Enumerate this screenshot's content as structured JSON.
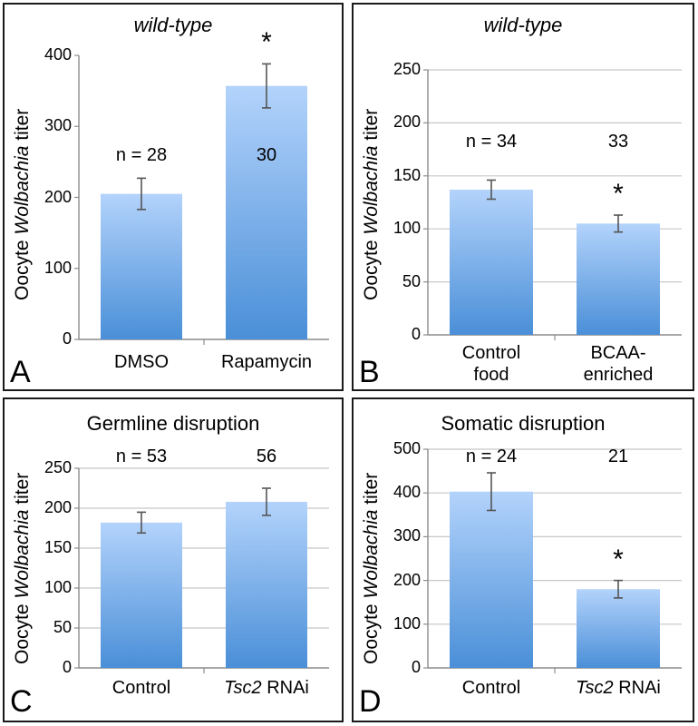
{
  "colors": {
    "bar_top": "#b3d3fb",
    "bar_bottom": "#4a8fd8",
    "grid": "#c8c8c8",
    "axis": "#8c8c8c",
    "errorbar": "#555555",
    "border": "#1a1a1a"
  },
  "chart_data": [
    {
      "panel": "A",
      "type": "bar",
      "title": "wild-type",
      "ylabel": {
        "before": "Oocyte ",
        "italic": "Wolbachia",
        "after": " titer"
      },
      "categories": [
        {
          "lines": [
            {
              "text": "DMSO",
              "italic": false
            }
          ]
        },
        {
          "lines": [
            {
              "text": "Rapamycin",
              "italic": false
            }
          ]
        }
      ],
      "values": [
        205,
        357
      ],
      "errors": [
        22,
        31
      ],
      "ylim": [
        0,
        400
      ],
      "yticks": [
        "0",
        "100",
        "200",
        "300",
        "400"
      ],
      "n_labels": [
        "n = 28",
        "30"
      ],
      "significance": [
        "",
        "*"
      ],
      "grid": false
    },
    {
      "panel": "B",
      "type": "bar",
      "title": "wild-type",
      "ylabel": {
        "before": "Oocyte ",
        "italic": "Wolbachia",
        "after": " titer"
      },
      "categories": [
        {
          "lines": [
            {
              "text": "Control",
              "italic": false
            },
            {
              "text": "food",
              "italic": false
            }
          ]
        },
        {
          "lines": [
            {
              "text": "BCAA-",
              "italic": false
            },
            {
              "text": "enriched",
              "italic": false
            }
          ]
        }
      ],
      "values": [
        137,
        105
      ],
      "errors": [
        9,
        8
      ],
      "ylim": [
        0,
        250
      ],
      "yticks": [
        "0",
        "50",
        "100",
        "150",
        "200",
        "250"
      ],
      "n_labels": [
        "n = 34",
        "33"
      ],
      "significance": [
        "",
        "*"
      ],
      "grid": true
    },
    {
      "panel": "C",
      "type": "bar",
      "title": "Germline disruption",
      "ylabel": {
        "before": "Oocyte ",
        "italic": "Wolbachia",
        "after": " titer"
      },
      "categories": [
        {
          "lines": [
            {
              "text": "Control",
              "italic": false
            }
          ]
        },
        {
          "lines": [
            {
              "text": "Tsc2",
              "italic": true,
              "rest": " RNAi"
            }
          ]
        }
      ],
      "values": [
        182,
        208
      ],
      "errors": [
        13,
        17
      ],
      "ylim": [
        0,
        250
      ],
      "yticks": [
        "0",
        "50",
        "100",
        "150",
        "200",
        "250"
      ],
      "n_labels": [
        "n = 53",
        "56"
      ],
      "significance": [
        "",
        ""
      ],
      "grid": true
    },
    {
      "panel": "D",
      "type": "bar",
      "title": "Somatic disruption",
      "ylabel": {
        "before": "Oocyte ",
        "italic": "Wolbachia",
        "after": " titer"
      },
      "categories": [
        {
          "lines": [
            {
              "text": "Control",
              "italic": false
            }
          ]
        },
        {
          "lines": [
            {
              "text": "Tsc2",
              "italic": true,
              "rest": " RNAi"
            }
          ]
        }
      ],
      "values": [
        403,
        180
      ],
      "errors": [
        43,
        20
      ],
      "ylim": [
        0,
        500
      ],
      "yticks": [
        "0",
        "100",
        "200",
        "300",
        "400",
        "500"
      ],
      "n_labels": [
        "n = 24",
        "21"
      ],
      "significance": [
        "",
        "*"
      ],
      "grid": true
    }
  ]
}
